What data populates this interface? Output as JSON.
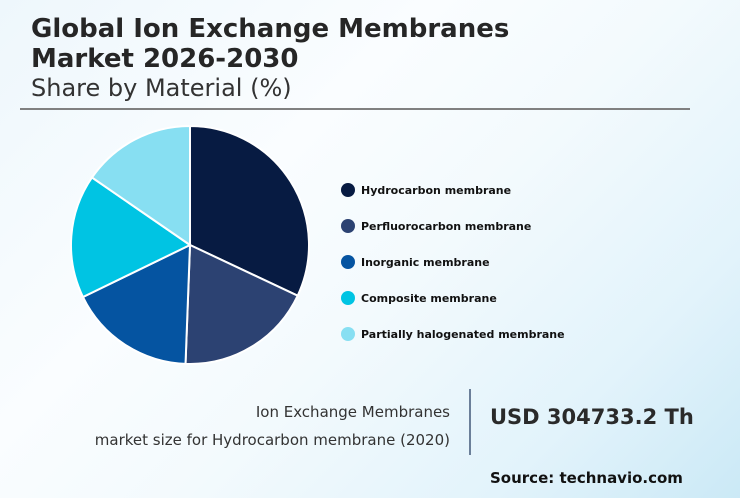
{
  "header": {
    "title_line1": "Global Ion Exchange Membranes",
    "title_line2": "Market 2026-2030",
    "subtitle": "Share by Material (%)"
  },
  "chart_data": {
    "type": "pie",
    "title": "Global Ion Exchange Membranes Market 2026-2030",
    "subtitle": "Share by Material (%)",
    "categories": [
      "Hydrocarbon membrane",
      "Perfluorocarbon membrane",
      "Inorganic membrane",
      "Composite membrane",
      "Partially halogenated membrane"
    ],
    "values": [
      32,
      18.6,
      17.2,
      16.8,
      15.4
    ],
    "colors": [
      "#071b42",
      "#2c4272",
      "#0554a1",
      "#00c4e3",
      "#87dff2"
    ],
    "start_angle_deg": 0,
    "direction": "clockwise",
    "legend_position": "right",
    "data_labels": false
  },
  "legend": {
    "items": [
      {
        "label": "Hydrocarbon membrane",
        "color": "#071b42"
      },
      {
        "label": "Perfluorocarbon membrane",
        "color": "#2c4272"
      },
      {
        "label": "Inorganic membrane",
        "color": "#0554a1"
      },
      {
        "label": "Composite membrane",
        "color": "#00c4e3"
      },
      {
        "label": "Partially halogenated membrane",
        "color": "#87dff2"
      }
    ]
  },
  "info": {
    "line1": "Ion Exchange Membranes",
    "line2": "market size for Hydrocarbon membrane (2020)",
    "value": "USD 304733.2 Th"
  },
  "source": "Source: technavio.com"
}
